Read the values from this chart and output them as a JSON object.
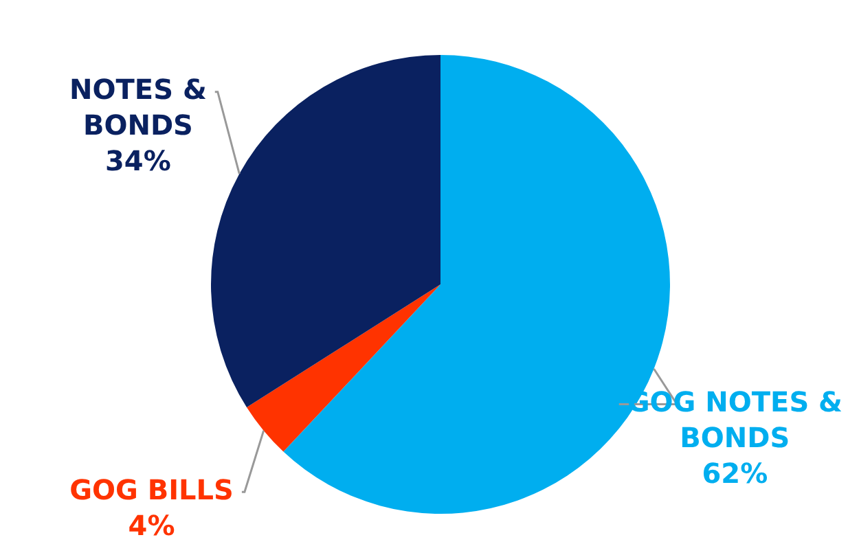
{
  "chart_data": {
    "type": "pie",
    "categories": [
      "GOG NOTES & BONDS",
      "GOG BILLS",
      "NOTES & BONDS"
    ],
    "values": [
      62,
      4,
      34
    ],
    "colors": [
      "#00aeef",
      "#ff3300",
      "#0a2160"
    ],
    "value_labels": [
      "62%",
      "4%",
      "34%"
    ],
    "legend": false
  }
}
